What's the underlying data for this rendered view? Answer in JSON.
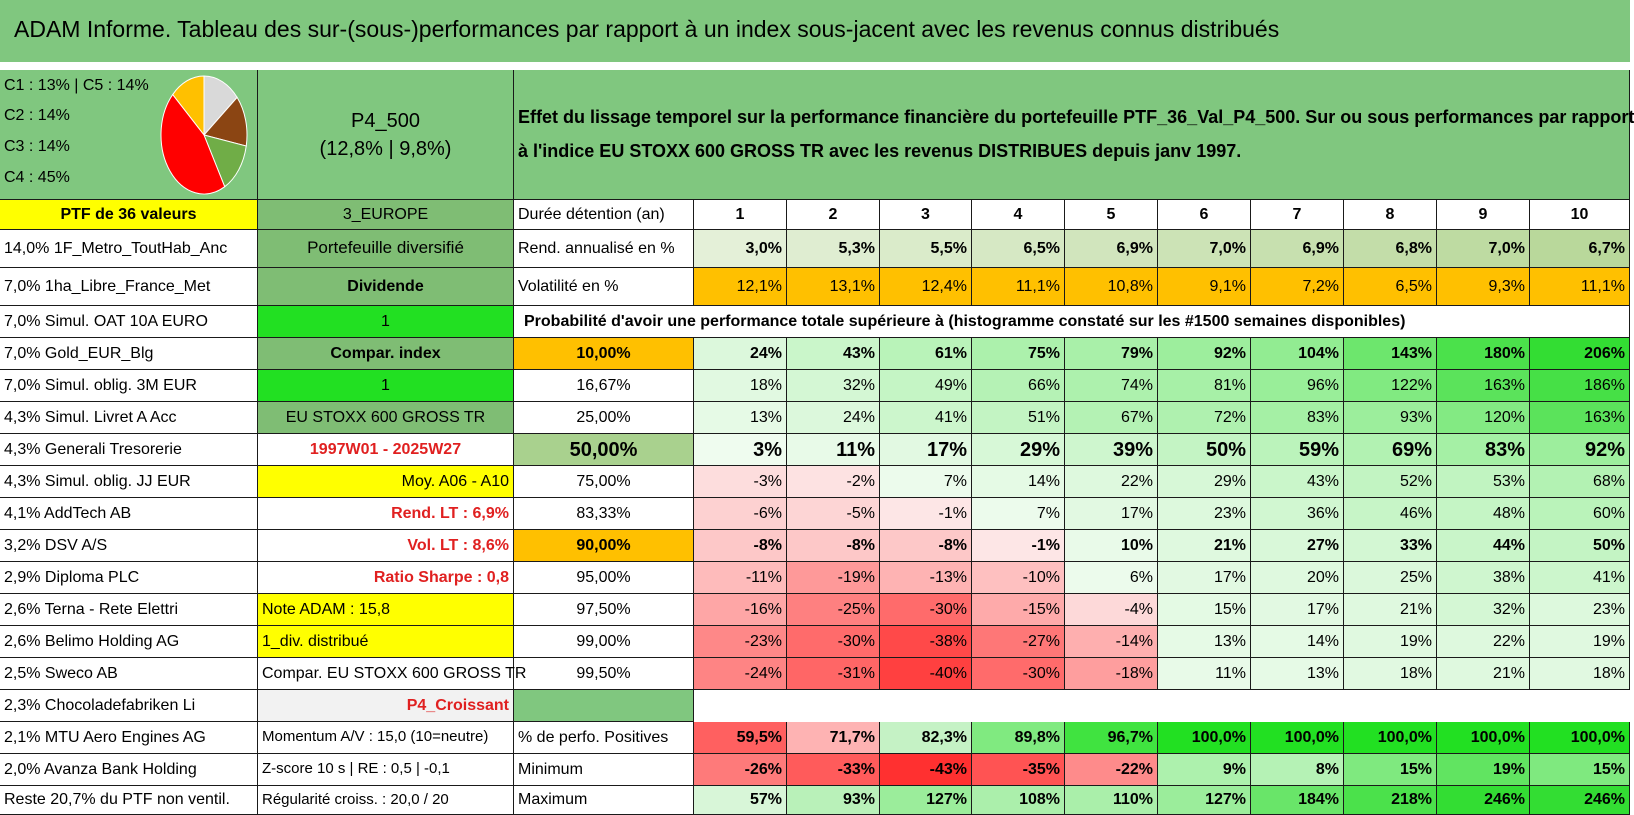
{
  "title": "ADAM Informe. Tableau des sur-(sous-)performances par rapport à un index sous-jacent avec les revenus connus distribués",
  "legend": [
    "C1 : 13% | C5 : 14%",
    "C2 : 14%",
    "C3 : 14%",
    "C4 : 45%"
  ],
  "pie": [
    {
      "label": "C1",
      "value": 13,
      "color": "#ffc000"
    },
    {
      "label": "C5",
      "value": 14,
      "color": "#d9d9d9"
    },
    {
      "label": "C2",
      "value": 14,
      "color": "#8b4513"
    },
    {
      "label": "C3",
      "value": 14,
      "color": "#70ad47"
    },
    {
      "label": "C4",
      "value": 45,
      "color": "#ff0000"
    }
  ],
  "portfolio": {
    "name": "P4_500",
    "stats": "(12,8% | 9,8%)"
  },
  "description": [
    "Effet du lissage temporel sur la performance financière du portefeuille PTF_36_Val_P4_500. Sur ou sous performances par rapport",
    "à l'indice EU STOXX 600 GROSS TR avec les revenus DISTRIBUES depuis janv 1997."
  ],
  "holdings_header": "PTF de 36 valeurs",
  "holdings": [
    "14,0% 1F_Metro_ToutHab_Anc",
    "7,0% 1ha_Libre_France_Met",
    "7,0% Simul. OAT 10A EURO",
    "7,0% Gold_EUR_Blg",
    "7,0% Simul. oblig. 3M EUR",
    "4,3% Simul. Livret A Acc",
    "4,3% Generali Tresorerie",
    "4,3% Simul. oblig. JJ EUR",
    "4,1% AddTech AB",
    "3,2% DSV A/S",
    "2,9% Diploma PLC",
    "2,6% Terna - Rete Elettri",
    "2,6% Belimo Holding AG",
    "2,5% Sweco AB",
    "2,3% Chocoladefabriken Li",
    "2,1% MTU Aero Engines AG",
    "2,0% Avanza Bank Holding",
    "Reste 20,7% du PTF non ventil."
  ],
  "params": [
    "3_EUROPE",
    "Portefeuille diversifié",
    "Dividende",
    "1",
    "Compar. index",
    "1",
    "EU STOXX 600 GROSS TR",
    "1997W01 - 2025W27",
    "Moy. A06 - A10",
    "Rend. LT : 6,9%",
    "Vol. LT : 8,6%",
    "Ratio Sharpe : 0,8",
    "Note ADAM : 15,8",
    "1_div. distribué",
    "Compar. EU STOXX 600 GROSS TR",
    "P4_Croissant",
    "Momentum A/V : 15,0 (10=neutre)",
    "Z-score 10 s | RE : 0,5 | -0,1",
    "Régularité croiss. : 20,0 / 20"
  ],
  "table": {
    "duration_label": "Durée détention (an)",
    "years": [
      "1",
      "2",
      "3",
      "4",
      "5",
      "6",
      "7",
      "8",
      "9",
      "10"
    ],
    "return_label": "Rend. annualisé en %",
    "returns": [
      "3,0%",
      "5,3%",
      "5,5%",
      "6,5%",
      "6,9%",
      "7,0%",
      "6,9%",
      "6,8%",
      "7,0%",
      "6,7%"
    ],
    "vol_label": "Volatilité en %",
    "vols": [
      "12,1%",
      "13,1%",
      "12,4%",
      "11,1%",
      "10,8%",
      "9,1%",
      "7,2%",
      "6,5%",
      "9,3%",
      "11,1%"
    ],
    "prob_label": "Probabilité d'avoir une performance totale supérieure à (histogramme constaté sur les #1500 semaines disponibles)",
    "quantiles": [
      {
        "q": "10,00%",
        "v": [
          "24%",
          "43%",
          "61%",
          "75%",
          "79%",
          "92%",
          "104%",
          "143%",
          "180%",
          "206%"
        ],
        "n": [
          24,
          43,
          61,
          75,
          79,
          92,
          104,
          143,
          180,
          206
        ]
      },
      {
        "q": "16,67%",
        "v": [
          "18%",
          "32%",
          "49%",
          "66%",
          "74%",
          "81%",
          "96%",
          "122%",
          "163%",
          "186%"
        ],
        "n": [
          18,
          32,
          49,
          66,
          74,
          81,
          96,
          122,
          163,
          186
        ]
      },
      {
        "q": "25,00%",
        "v": [
          "13%",
          "24%",
          "41%",
          "51%",
          "67%",
          "72%",
          "83%",
          "93%",
          "120%",
          "163%"
        ],
        "n": [
          13,
          24,
          41,
          51,
          67,
          72,
          83,
          93,
          120,
          163
        ]
      },
      {
        "q": "50,00%",
        "v": [
          "3%",
          "11%",
          "17%",
          "29%",
          "39%",
          "50%",
          "59%",
          "69%",
          "83%",
          "92%"
        ],
        "n": [
          3,
          11,
          17,
          29,
          39,
          50,
          59,
          69,
          83,
          92
        ]
      },
      {
        "q": "75,00%",
        "v": [
          "-3%",
          "-2%",
          "7%",
          "14%",
          "22%",
          "29%",
          "43%",
          "52%",
          "53%",
          "68%"
        ],
        "n": [
          -3,
          -2,
          7,
          14,
          22,
          29,
          43,
          52,
          53,
          68
        ]
      },
      {
        "q": "83,33%",
        "v": [
          "-6%",
          "-5%",
          "-1%",
          "7%",
          "17%",
          "23%",
          "36%",
          "46%",
          "48%",
          "60%"
        ],
        "n": [
          -6,
          -5,
          -1,
          7,
          17,
          23,
          36,
          46,
          48,
          60
        ]
      },
      {
        "q": "90,00%",
        "v": [
          "-8%",
          "-8%",
          "-8%",
          "-1%",
          "10%",
          "21%",
          "27%",
          "33%",
          "44%",
          "50%"
        ],
        "n": [
          -8,
          -8,
          -8,
          -1,
          10,
          21,
          27,
          33,
          44,
          50
        ]
      },
      {
        "q": "95,00%",
        "v": [
          "-11%",
          "-19%",
          "-13%",
          "-10%",
          "6%",
          "17%",
          "20%",
          "25%",
          "38%",
          "41%"
        ],
        "n": [
          -11,
          -19,
          -13,
          -10,
          6,
          17,
          20,
          25,
          38,
          41
        ]
      },
      {
        "q": "97,50%",
        "v": [
          "-16%",
          "-25%",
          "-30%",
          "-15%",
          "-4%",
          "15%",
          "17%",
          "21%",
          "32%",
          "23%"
        ],
        "n": [
          -16,
          -25,
          -30,
          -15,
          -4,
          15,
          17,
          21,
          32,
          23
        ]
      },
      {
        "q": "99,00%",
        "v": [
          "-23%",
          "-30%",
          "-38%",
          "-27%",
          "-14%",
          "13%",
          "14%",
          "19%",
          "22%",
          "19%"
        ],
        "n": [
          -23,
          -30,
          -38,
          -27,
          -14,
          13,
          14,
          19,
          22,
          19
        ]
      },
      {
        "q": "99,50%",
        "v": [
          "-24%",
          "-31%",
          "-40%",
          "-30%",
          "-18%",
          "11%",
          "13%",
          "18%",
          "21%",
          "18%"
        ],
        "n": [
          -24,
          -31,
          -40,
          -30,
          -18,
          11,
          13,
          18,
          21,
          18
        ]
      }
    ],
    "pos_label": "% de perfo. Positives",
    "pos": [
      "59,5%",
      "71,7%",
      "82,3%",
      "89,8%",
      "96,7%",
      "100,0%",
      "100,0%",
      "100,0%",
      "100,0%",
      "100,0%"
    ],
    "pos_n": [
      59.5,
      71.7,
      82.3,
      89.8,
      96.7,
      100,
      100,
      100,
      100,
      100
    ],
    "min_label": "Minimum",
    "min": [
      "-26%",
      "-33%",
      "-43%",
      "-35%",
      "-22%",
      "9%",
      "8%",
      "15%",
      "19%",
      "15%"
    ],
    "min_n": [
      -26,
      -33,
      -43,
      -35,
      -22,
      9,
      8,
      15,
      19,
      15
    ],
    "max_label": "Maximum",
    "max": [
      "57%",
      "93%",
      "127%",
      "108%",
      "110%",
      "127%",
      "184%",
      "218%",
      "246%",
      "246%"
    ],
    "max_n": [
      57,
      93,
      127,
      108,
      110,
      127,
      184,
      218,
      246,
      246
    ]
  }
}
